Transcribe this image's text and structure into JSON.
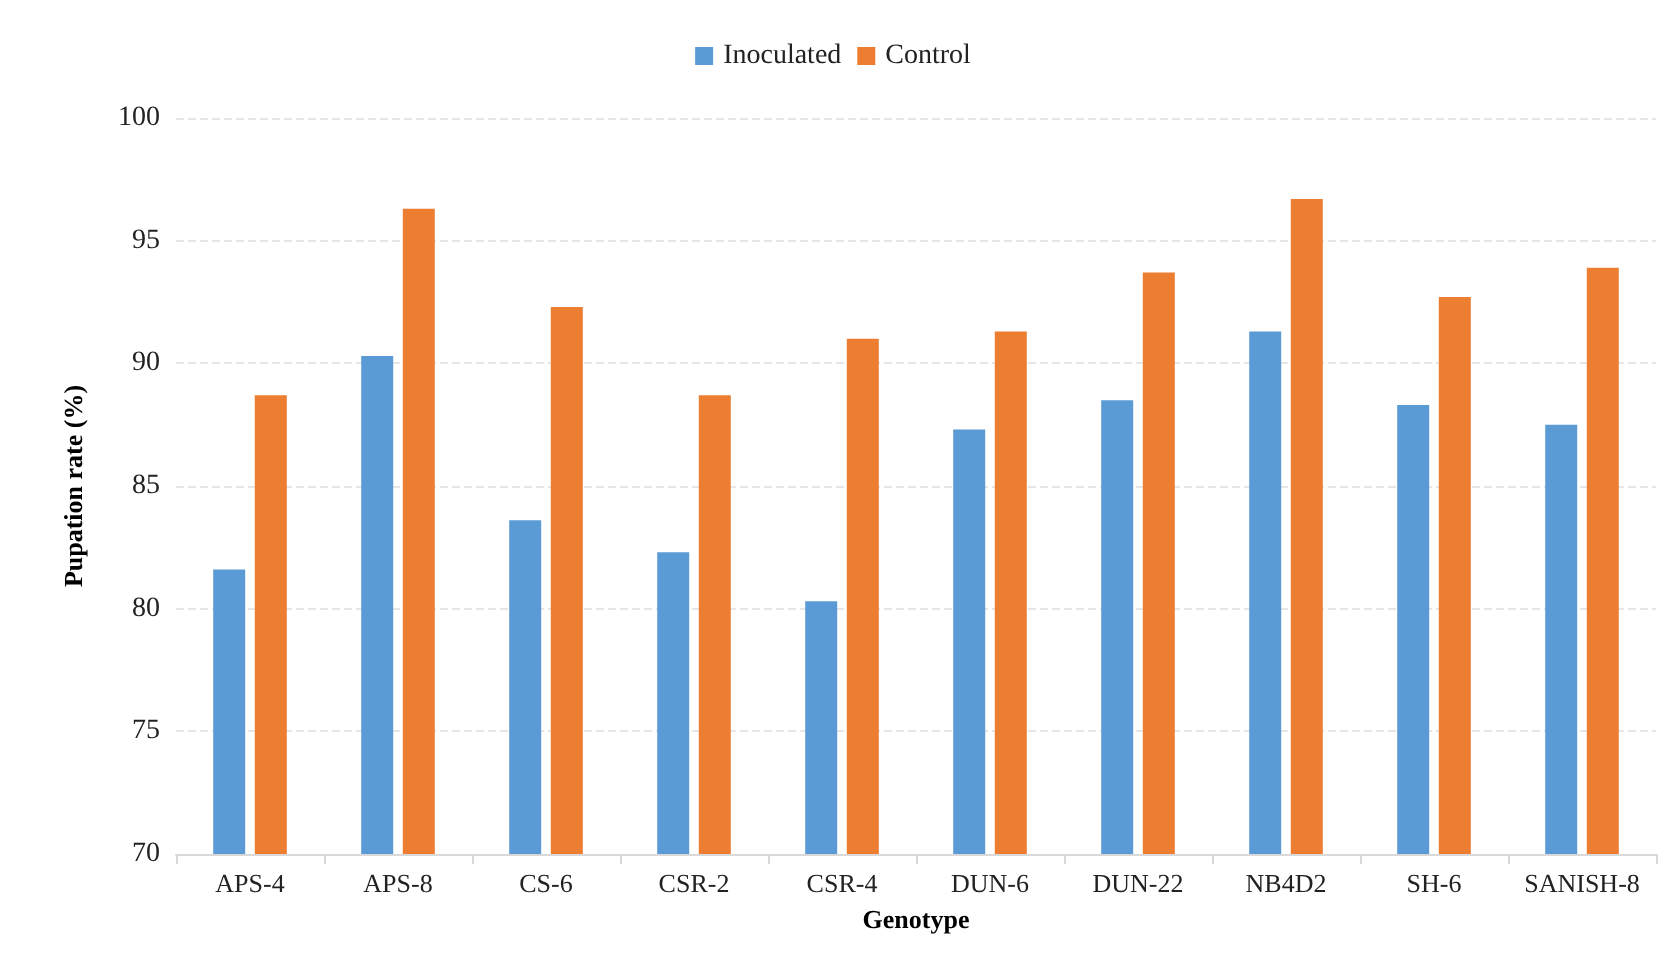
{
  "chart_data": {
    "type": "bar",
    "xlabel": "Genotype",
    "ylabel": "Pupation rate (%)",
    "categories": [
      "APS-4",
      "APS-8",
      "CS-6",
      "CSR-2",
      "CSR-4",
      "DUN-6",
      "DUN-22",
      "NB4D2",
      "SH-6",
      "SANISH-8"
    ],
    "series": [
      {
        "name": "Inoculated",
        "color": "#5b9bd5",
        "values": [
          81.6,
          90.3,
          83.6,
          82.3,
          80.3,
          87.3,
          88.5,
          91.3,
          88.3,
          87.5
        ]
      },
      {
        "name": "Control",
        "color": "#ed7d31",
        "values": [
          88.7,
          96.3,
          92.3,
          88.7,
          91.0,
          91.3,
          93.7,
          96.7,
          92.7,
          93.9
        ]
      }
    ],
    "ylim": [
      70,
      100
    ],
    "yticks": [
      70,
      75,
      80,
      85,
      90,
      95,
      100
    ],
    "grid": "y",
    "legend": "top"
  }
}
